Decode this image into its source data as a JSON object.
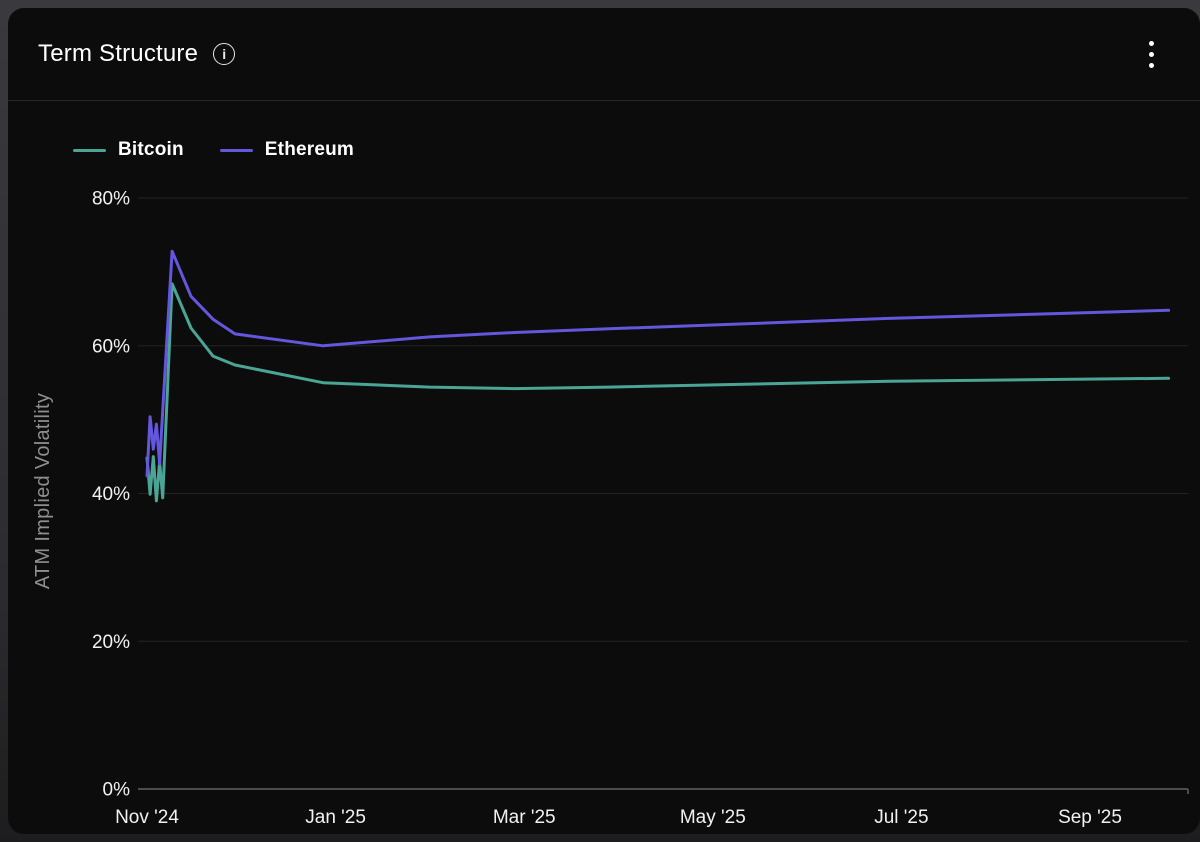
{
  "header": {
    "title": "Term Structure",
    "info_icon_glyph": "i"
  },
  "chart_data": {
    "type": "line",
    "title": "Term Structure",
    "xlabel": "",
    "ylabel": "ATM Implied Volatility",
    "ylim": [
      0,
      80
    ],
    "grid": "horizontal",
    "legend_position": "top-left",
    "y_ticks": [
      {
        "value": 0,
        "label": "0%"
      },
      {
        "value": 20,
        "label": "20%"
      },
      {
        "value": 40,
        "label": "40%"
      },
      {
        "value": 60,
        "label": "60%"
      },
      {
        "value": 80,
        "label": "80%"
      }
    ],
    "x_ticks": [
      {
        "label": "Nov '24",
        "month_offset": 0
      },
      {
        "label": "Jan '25",
        "month_offset": 2
      },
      {
        "label": "Mar '25",
        "month_offset": 4
      },
      {
        "label": "May '25",
        "month_offset": 6
      },
      {
        "label": "Jul '25",
        "month_offset": 8
      },
      {
        "label": "Sep '25",
        "month_offset": 10
      }
    ],
    "series": [
      {
        "name": "Bitcoin",
        "color": "#4aa595",
        "points": [
          {
            "date": "2024-11-01",
            "value": 44.8
          },
          {
            "date": "2024-11-02",
            "value": 39.9
          },
          {
            "date": "2024-11-03",
            "value": 45.0
          },
          {
            "date": "2024-11-04",
            "value": 39.0
          },
          {
            "date": "2024-11-05",
            "value": 44.3
          },
          {
            "date": "2024-11-06",
            "value": 39.4
          },
          {
            "date": "2024-11-09",
            "value": 68.4
          },
          {
            "date": "2024-11-15",
            "value": 62.4
          },
          {
            "date": "2024-11-22",
            "value": 58.6
          },
          {
            "date": "2024-11-29",
            "value": 57.4
          },
          {
            "date": "2024-12-27",
            "value": 55.0
          },
          {
            "date": "2025-01-31",
            "value": 54.4
          },
          {
            "date": "2025-02-28",
            "value": 54.2
          },
          {
            "date": "2025-03-28",
            "value": 54.4
          },
          {
            "date": "2025-06-27",
            "value": 55.2
          },
          {
            "date": "2025-09-26",
            "value": 55.6
          }
        ]
      },
      {
        "name": "Ethereum",
        "color": "#6456dd",
        "points": [
          {
            "date": "2024-11-01",
            "value": 42.4
          },
          {
            "date": "2024-11-02",
            "value": 50.4
          },
          {
            "date": "2024-11-03",
            "value": 46.0
          },
          {
            "date": "2024-11-04",
            "value": 49.4
          },
          {
            "date": "2024-11-05",
            "value": 44.0
          },
          {
            "date": "2024-11-09",
            "value": 72.8
          },
          {
            "date": "2024-11-15",
            "value": 66.7
          },
          {
            "date": "2024-11-22",
            "value": 63.6
          },
          {
            "date": "2024-11-29",
            "value": 61.6
          },
          {
            "date": "2024-12-27",
            "value": 60.0
          },
          {
            "date": "2025-01-31",
            "value": 61.2
          },
          {
            "date": "2025-02-28",
            "value": 61.8
          },
          {
            "date": "2025-03-28",
            "value": 62.3
          },
          {
            "date": "2025-06-27",
            "value": 63.7
          },
          {
            "date": "2025-09-26",
            "value": 64.8
          }
        ]
      }
    ]
  }
}
